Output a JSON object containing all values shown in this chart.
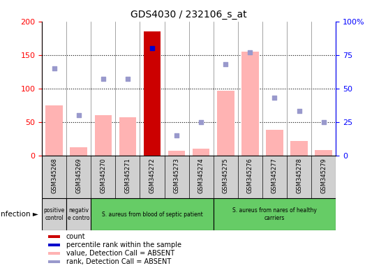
{
  "title": "GDS4030 / 232106_s_at",
  "samples": [
    "GSM345268",
    "GSM345269",
    "GSM345270",
    "GSM345271",
    "GSM345272",
    "GSM345273",
    "GSM345274",
    "GSM345275",
    "GSM345276",
    "GSM345277",
    "GSM345278",
    "GSM345279"
  ],
  "count_values": [
    0,
    0,
    0,
    0,
    185,
    0,
    0,
    0,
    0,
    0,
    0,
    0
  ],
  "percentile_rank": [
    null,
    null,
    null,
    null,
    80,
    null,
    null,
    null,
    null,
    null,
    null,
    null
  ],
  "absent_value": [
    75,
    12,
    60,
    57,
    8,
    7,
    10,
    97,
    155,
    38,
    22,
    8
  ],
  "absent_rank": [
    65,
    30,
    57,
    57,
    null,
    15,
    25,
    68,
    77,
    43,
    33,
    25
  ],
  "ylim_left": [
    0,
    200
  ],
  "ylim_right": [
    0,
    100
  ],
  "yticks_left": [
    0,
    50,
    100,
    150,
    200
  ],
  "yticks_right": [
    0,
    25,
    50,
    75,
    100
  ],
  "yticklabels_right": [
    "0",
    "25",
    "50",
    "75",
    "100%"
  ],
  "groups": [
    {
      "label": "positive\ncontrol",
      "start": 0,
      "end": 1,
      "color": "#d0d0d0"
    },
    {
      "label": "negativ\ne contro",
      "start": 1,
      "end": 2,
      "color": "#d0d0d0"
    },
    {
      "label": "S. aureus from blood of septic patient",
      "start": 2,
      "end": 7,
      "color": "#66cc66"
    },
    {
      "label": "S. aureus from nares of healthy\ncarriers",
      "start": 7,
      "end": 12,
      "color": "#66cc66"
    }
  ],
  "bar_color_count": "#cc0000",
  "bar_color_absent_value": "#ffb3b3",
  "dot_color_percentile": "#0000cc",
  "dot_color_absent_rank": "#9999cc",
  "legend_items": [
    {
      "label": "count",
      "color": "#cc0000"
    },
    {
      "label": "percentile rank within the sample",
      "color": "#0000cc"
    },
    {
      "label": "value, Detection Call = ABSENT",
      "color": "#ffb3b3"
    },
    {
      "label": "rank, Detection Call = ABSENT",
      "color": "#9999cc"
    }
  ],
  "infection_label": "infection",
  "figsize": [
    5.23,
    3.84
  ],
  "dpi": 100
}
